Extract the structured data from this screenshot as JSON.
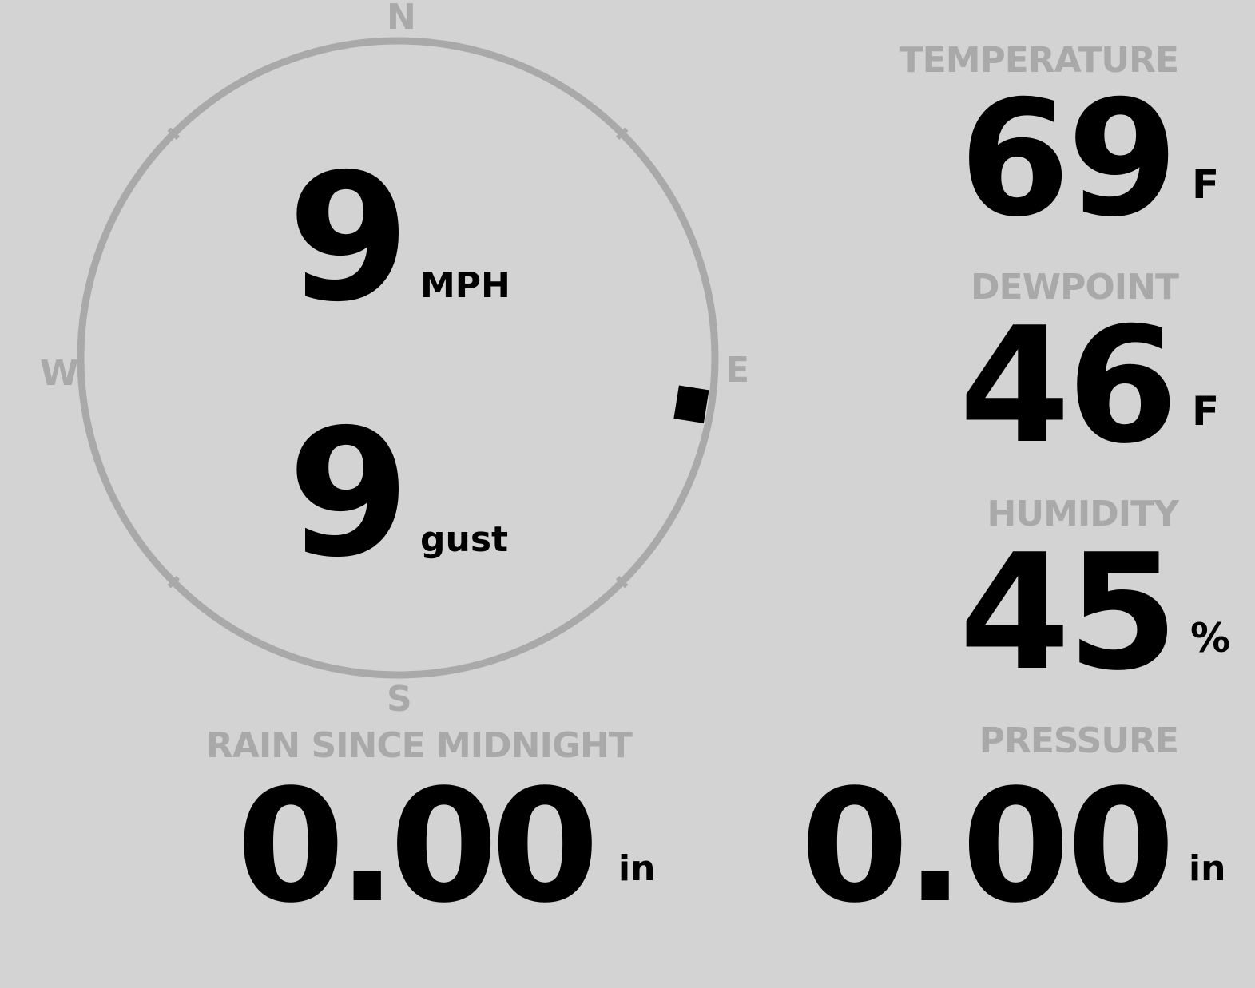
{
  "wind": {
    "speed": "9",
    "speed_unit": "MPH",
    "gust": "9",
    "gust_unit": "gust",
    "direction_degrees": 99,
    "cardinals": {
      "n": "N",
      "e": "E",
      "s": "S",
      "w": "W"
    }
  },
  "temperature": {
    "label": "TEMPERATURE",
    "value": "69",
    "unit": "F"
  },
  "dewpoint": {
    "label": "DEWPOINT",
    "value": "46",
    "unit": "F"
  },
  "humidity": {
    "label": "HUMIDITY",
    "value": "45",
    "unit": "%"
  },
  "rain": {
    "label": "RAIN SINCE MIDNIGHT",
    "value": "0.00",
    "unit": "in"
  },
  "pressure": {
    "label": "PRESSURE",
    "value": "0.00",
    "unit": "in"
  },
  "colors": {
    "background": "#d3d3d3",
    "muted": "#a9a9a9",
    "value": "#000000"
  }
}
